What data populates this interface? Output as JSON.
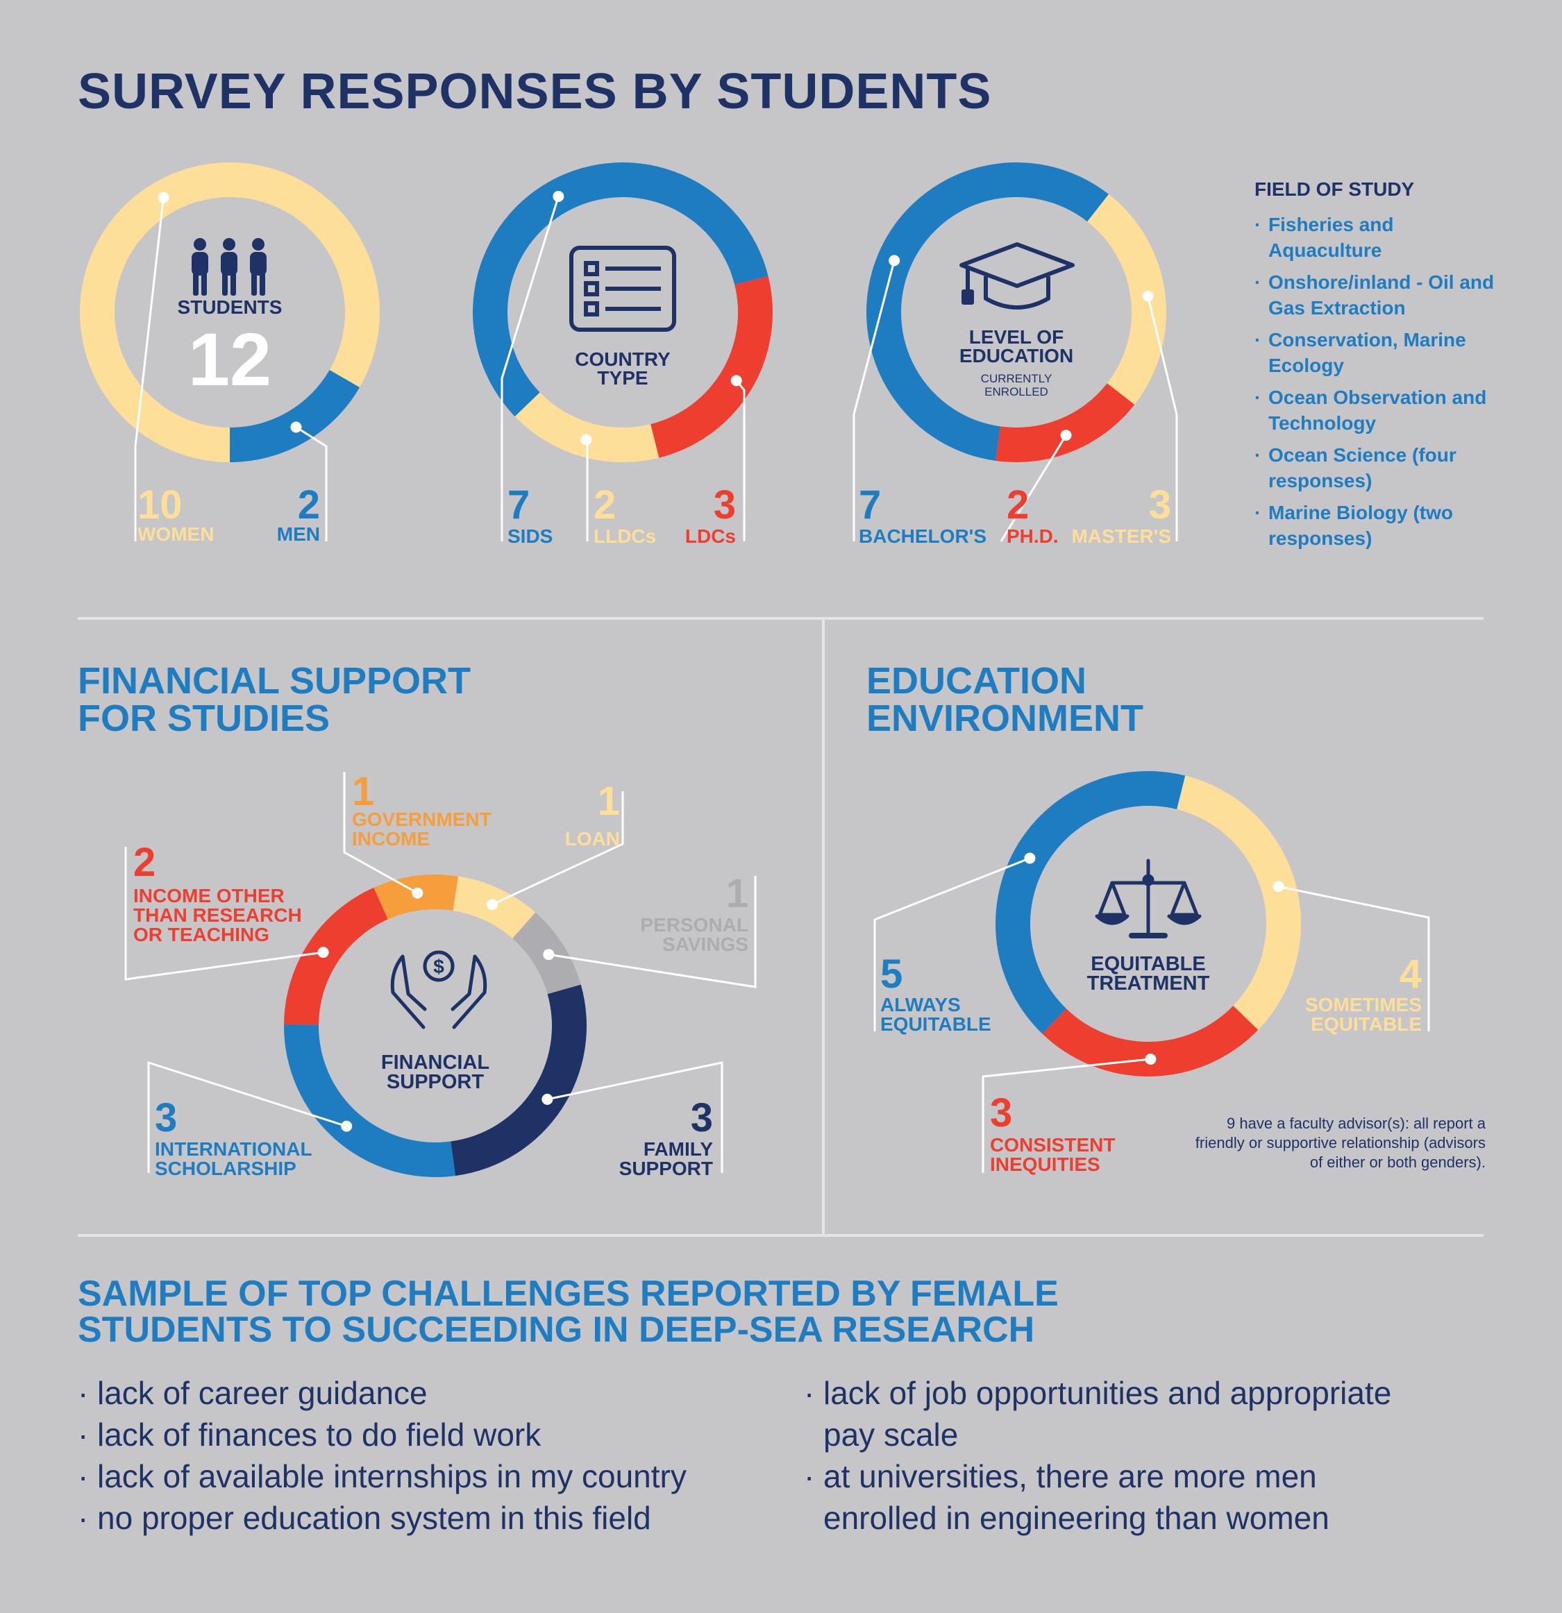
{
  "title": "SURVEY RESPONSES BY STUDENTS",
  "colors": {
    "navy": "#1f3266",
    "blue": "#1e7cc1",
    "yellow": "#fddf9a",
    "red": "#ee3e2f",
    "orange": "#f59e3b",
    "grey": "#adadb1",
    "white": "#ffffff"
  },
  "icons": [
    "people-icon",
    "checklist-icon",
    "graduation-cap-icon",
    "money-hands-icon",
    "scales-icon"
  ],
  "field_of_study": {
    "title": "FIELD OF STUDY",
    "items": [
      "Fisheries and Aquaculture",
      "Onshore/inland - Oil and Gas Extraction",
      "Conservation, Marine Ecology",
      "Ocean Observation and Technology",
      "Ocean Science (four responses)",
      "Marine Biology (two responses)"
    ]
  },
  "sections": {
    "financial_title_line1": "FINANCIAL SUPPORT",
    "financial_title_line2": "FOR STUDIES",
    "education_title_line1": "EDUCATION",
    "education_title_line2": "ENVIRONMENT",
    "challenges_title_line1": "SAMPLE OF TOP CHALLENGES REPORTED BY FEMALE",
    "challenges_title_line2": "STUDENTS TO SUCCEEDING IN DEEP-SEA RESEARCH"
  },
  "advisor_note": "9 have a faculty advisor(s): all report a friendly or supportive relationship (advisors of either or both genders).",
  "challenges": {
    "left": [
      "lack of career guidance",
      "lack of finances to do field work",
      "lack of available internships in my country",
      "no proper education system in this field"
    ],
    "right": [
      "lack of job opportunities and appropriate pay scale",
      "at universities, there are more men enrolled in engineering than women"
    ]
  },
  "chart_data": [
    {
      "type": "pie",
      "id": "students",
      "center_label": "STUDENTS",
      "center_value": "12",
      "slices": [
        {
          "label": "WOMEN",
          "value": 10,
          "color": "#fddf9a"
        },
        {
          "label": "MEN",
          "value": 2,
          "color": "#1e7cc1"
        }
      ]
    },
    {
      "type": "pie",
      "id": "country",
      "center_label": [
        "COUNTRY",
        "TYPE"
      ],
      "slices": [
        {
          "label": "SIDS",
          "value": 7,
          "color": "#1e7cc1"
        },
        {
          "label": "LLDCs",
          "value": 2,
          "color": "#fddf9a"
        },
        {
          "label": "LDCs",
          "value": 3,
          "color": "#ee3e2f"
        }
      ]
    },
    {
      "type": "pie",
      "id": "education",
      "center_label": [
        "LEVEL OF",
        "EDUCATION"
      ],
      "center_sublabel": [
        "CURRENTLY",
        "ENROLLED"
      ],
      "slices": [
        {
          "label": "BACHELOR'S",
          "value": 7,
          "color": "#1e7cc1"
        },
        {
          "label": "PH.D.",
          "value": 2,
          "color": "#ee3e2f"
        },
        {
          "label": "MASTER'S",
          "value": 3,
          "color": "#fddf9a"
        }
      ]
    },
    {
      "type": "pie",
      "id": "financial",
      "center_label": [
        "FINANCIAL",
        "SUPPORT"
      ],
      "slices": [
        {
          "label": [
            "GOVERNMENT",
            "INCOME"
          ],
          "value": 1,
          "color": "#f59e3b"
        },
        {
          "label": [
            "LOAN"
          ],
          "value": 1,
          "color": "#fddf9a"
        },
        {
          "label": [
            "PERSONAL",
            "SAVINGS"
          ],
          "value": 1,
          "color": "#adadb1"
        },
        {
          "label": [
            "FAMILY",
            "SUPPORT"
          ],
          "value": 3,
          "color": "#1f3266"
        },
        {
          "label": [
            "INTERNATIONAL",
            "SCHOLARSHIP"
          ],
          "value": 3,
          "color": "#1e7cc1"
        },
        {
          "label": [
            "INCOME OTHER",
            "THAN RESEARCH",
            "OR TEACHING"
          ],
          "value": 2,
          "color": "#ee3e2f"
        }
      ]
    },
    {
      "type": "pie",
      "id": "equitable",
      "center_label": [
        "EQUITABLE",
        "TREATMENT"
      ],
      "slices": [
        {
          "label": [
            "SOMETIMES",
            "EQUITABLE"
          ],
          "value": 4,
          "color": "#fddf9a"
        },
        {
          "label": [
            "CONSISTENT",
            "INEQUITIES"
          ],
          "value": 3,
          "color": "#ee3e2f"
        },
        {
          "label": [
            "ALWAYS",
            "EQUITABLE"
          ],
          "value": 5,
          "color": "#1e7cc1"
        }
      ]
    }
  ]
}
